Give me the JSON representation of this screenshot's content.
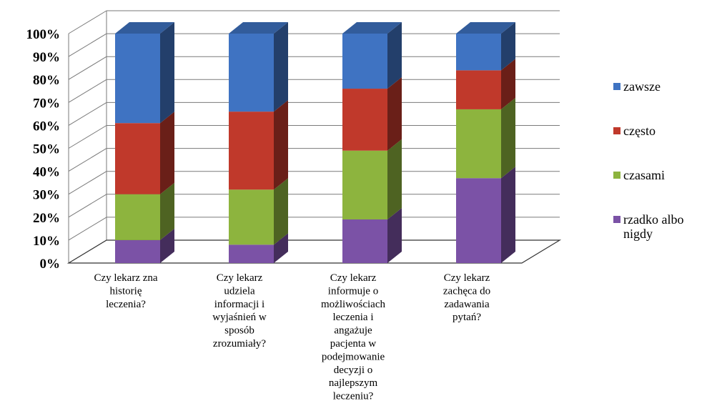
{
  "chart_data": {
    "type": "bar",
    "stacked": "percent",
    "three_d": true,
    "categories": [
      [
        "Czy lekarz zna",
        "historię",
        "leczenia?"
      ],
      [
        "Czy lekarz",
        "udziela",
        "informacji i",
        "wyjaśnień w",
        "sposób",
        "zrozumiały?"
      ],
      [
        "Czy lekarz",
        "informuje o",
        "możliwościach",
        "leczenia i",
        "angażuje",
        "pacjenta w",
        "podejmowanie",
        "decyzji o",
        "najlepszym",
        "leczeniu?"
      ],
      [
        "Czy lekarz",
        "zachęca do",
        "zadawania",
        "pytań?"
      ]
    ],
    "series": [
      {
        "name": "rzadko albo nigdy",
        "color": "#7b52a6",
        "values": [
          10,
          8,
          19,
          37
        ]
      },
      {
        "name": "czasami",
        "color": "#8db43e",
        "values": [
          20,
          24,
          30,
          30
        ]
      },
      {
        "name": "często",
        "color": "#c0392b",
        "values": [
          31,
          34,
          27,
          17
        ]
      },
      {
        "name": "zawsze",
        "color": "#3f73c2",
        "values": [
          39,
          34,
          24,
          16
        ]
      }
    ],
    "y_ticks": [
      "0%",
      "10%",
      "20%",
      "30%",
      "40%",
      "50%",
      "60%",
      "70%",
      "80%",
      "90%",
      "100%"
    ],
    "ylim": [
      0,
      100
    ],
    "legend": {
      "position": "right",
      "order": [
        "zawsze",
        "często",
        "czasami",
        "rzadko albo nigdy"
      ],
      "labels": [
        [
          "zawsze"
        ],
        [
          "często"
        ],
        [
          "czasami"
        ],
        [
          "rzadko albo",
          "nigdy"
        ]
      ]
    },
    "grid": true
  }
}
